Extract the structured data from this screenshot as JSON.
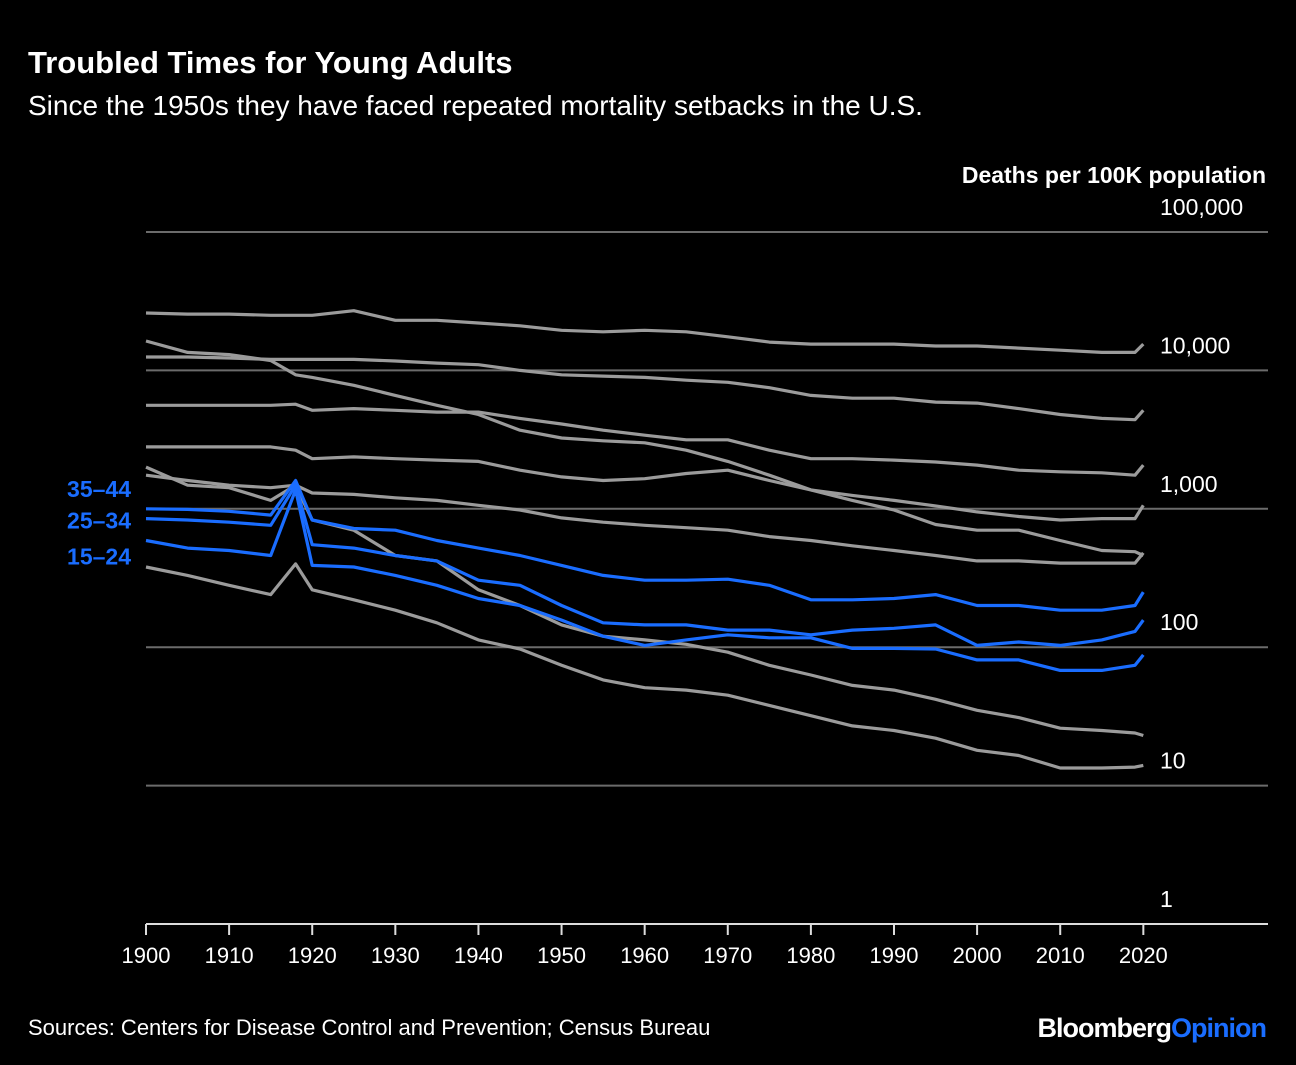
{
  "chart_data": {
    "type": "line",
    "title": "Troubled Times for Young Adults",
    "subtitle": "Since the 1950s they have faced repeated mortality setbacks in the U.S.",
    "y_label": "Deaths per 100K population",
    "source": "Sources: Centers for Disease Control and Prevention; Census Bureau",
    "brand": "Bloomberg",
    "brand_suffix": "Opinion",
    "log_scale": true,
    "grid": true,
    "xlim": [
      1900,
      2035
    ],
    "xticks": [
      1900,
      1910,
      1920,
      1930,
      1940,
      1950,
      1960,
      1970,
      1980,
      1990,
      2000,
      2010,
      2020
    ],
    "ylim": [
      1,
      100000
    ],
    "yticks": [
      1,
      10,
      100,
      {
        "value": 1000,
        "label": "1,000"
      },
      {
        "value": 10000,
        "label": "10,000"
      },
      {
        "value": 100000,
        "label": "100,000"
      }
    ],
    "x": [
      1900,
      1905,
      1910,
      1915,
      1918,
      1920,
      1925,
      1930,
      1935,
      1940,
      1945,
      1950,
      1955,
      1960,
      1965,
      1970,
      1975,
      1980,
      1985,
      1990,
      1995,
      2000,
      2005,
      2010,
      2015,
      2019,
      2020
    ],
    "series": [
      {
        "color": "#9b9b9b",
        "values": [
          26000,
          25500,
          25500,
          25000,
          25000,
          25000,
          27000,
          23000,
          23000,
          22000,
          21000,
          19500,
          19000,
          19500,
          19000,
          17500,
          16000,
          15500,
          15500,
          15500,
          15000,
          15000,
          14500,
          14000,
          13500,
          13500,
          15500
        ]
      },
      {
        "color": "#9b9b9b",
        "values": [
          16300,
          13500,
          13000,
          11800,
          9300,
          8900,
          7800,
          6600,
          5600,
          4800,
          3700,
          3250,
          3100,
          3000,
          2650,
          2200,
          1750,
          1370,
          1150,
          980,
          770,
          700,
          700,
          590,
          500,
          490,
          460
        ]
      },
      {
        "color": "#9b9b9b",
        "values": [
          12500,
          12500,
          12300,
          12000,
          12000,
          12000,
          12000,
          11700,
          11300,
          11000,
          10000,
          9300,
          9100,
          8900,
          8500,
          8200,
          7500,
          6600,
          6300,
          6300,
          5900,
          5800,
          5300,
          4800,
          4500,
          4400,
          5150
        ]
      },
      {
        "color": "#9b9b9b",
        "values": [
          5600,
          5600,
          5600,
          5600,
          5700,
          5150,
          5300,
          5150,
          5000,
          5000,
          4500,
          4100,
          3700,
          3400,
          3150,
          3150,
          2650,
          2300,
          2300,
          2250,
          2180,
          2070,
          1900,
          1850,
          1820,
          1750,
          2070
        ]
      },
      {
        "color": "#9b9b9b",
        "values": [
          2800,
          2800,
          2800,
          2800,
          2650,
          2300,
          2370,
          2300,
          2250,
          2200,
          1900,
          1700,
          1600,
          1650,
          1800,
          1900,
          1600,
          1370,
          1250,
          1150,
          1050,
          950,
          880,
          830,
          850,
          850,
          1060
        ]
      },
      {
        "color": "#9b9b9b",
        "values": [
          1750,
          1600,
          1480,
          1420,
          1480,
          1300,
          1270,
          1200,
          1150,
          1060,
          980,
          860,
          800,
          760,
          730,
          700,
          630,
          590,
          540,
          500,
          460,
          420,
          420,
          405,
          405,
          405,
          480
        ]
      },
      {
        "color": "#9b9b9b",
        "values": [
          2000,
          1480,
          1420,
          1150,
          1480,
          830,
          700,
          460,
          420,
          260,
          200,
          145,
          120,
          113,
          105,
          92,
          74,
          63,
          53,
          49,
          42,
          35,
          31,
          26,
          25,
          24,
          23
        ]
      },
      {
        "color": "#9b9b9b",
        "values": [
          380,
          330,
          280,
          240,
          400,
          260,
          220,
          185,
          150,
          113,
          97,
          74,
          58,
          51,
          49,
          45,
          38,
          32,
          27,
          25,
          22,
          18,
          16.5,
          13.4,
          13.4,
          13.6,
          14
        ]
      },
      {
        "name": "35–44",
        "color": "#1a6dff",
        "values": [
          1000,
          990,
          960,
          900,
          1600,
          830,
          720,
          700,
          590,
          520,
          460,
          390,
          330,
          305,
          305,
          310,
          280,
          220,
          220,
          225,
          240,
          200,
          200,
          185,
          185,
          200,
          250
        ]
      },
      {
        "name": "25–34",
        "color": "#1a6dff",
        "values": [
          850,
          830,
          800,
          760,
          1480,
          550,
          520,
          460,
          420,
          305,
          280,
          200,
          150,
          145,
          145,
          133,
          133,
          123,
          133,
          137,
          145,
          103,
          109,
          103,
          113,
          130,
          157
        ]
      },
      {
        "name": "15–24",
        "color": "#1a6dff",
        "values": [
          590,
          520,
          500,
          460,
          1370,
          390,
          380,
          330,
          280,
          225,
          200,
          157,
          120,
          103,
          113,
          123,
          117,
          117,
          98,
          98,
          97,
          81,
          81,
          68,
          68,
          74,
          88
        ]
      }
    ]
  }
}
